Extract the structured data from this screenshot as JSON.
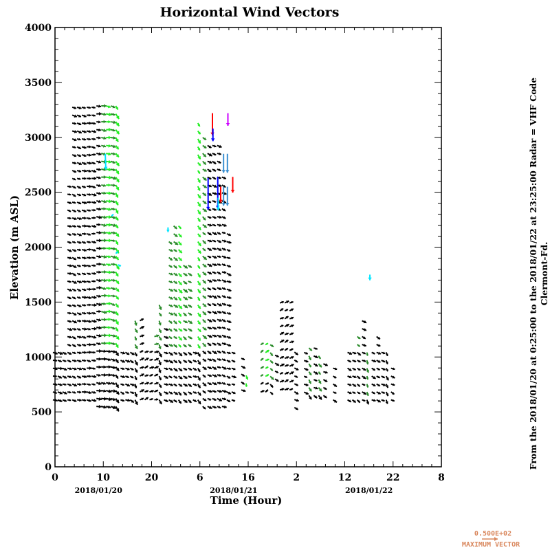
{
  "chart_data": {
    "type": "vector-field",
    "title": "Horizontal Wind Vectors",
    "xlabel": "Time (Hour)",
    "ylabel": "Elevation (m ASL)",
    "xlim": [
      0,
      80
    ],
    "ylim": [
      0,
      4000
    ],
    "x_ticks": [
      0,
      10,
      20,
      30,
      40,
      50,
      60,
      70,
      80
    ],
    "x_tick_labels": [
      "0",
      "10",
      "20",
      "6",
      "16",
      "2",
      "12",
      "22",
      "8"
    ],
    "y_ticks": [
      0,
      500,
      1000,
      1500,
      2000,
      2500,
      3000,
      3500,
      4000
    ],
    "y_tick_labels": [
      "0",
      "500",
      "1000",
      "1500",
      "2000",
      "2500",
      "3000",
      "3500",
      "4000"
    ],
    "date_labels": [
      {
        "t": 9,
        "text": "2018/01/20"
      },
      {
        "t": 37,
        "text": "2018/01/21"
      },
      {
        "t": 65,
        "text": "2018/01/22"
      }
    ],
    "side_text": [
      "From the 2018/01/20 at  0:25:00 to the 2018/01/22 at 23:25:00 Radar = VHF Code",
      "Clermont-Fd."
    ],
    "legend": {
      "value": "0.500E+02",
      "label": "MAXIMUM VECTOR",
      "color": "#d9885e",
      "speed": 50
    },
    "row_step_m": 72,
    "colors": {
      "black": "#000000",
      "dark": "#2a8a2a",
      "bright": "#22ee22",
      "cyan": "#00e5ff",
      "steel": "#3a8fd0",
      "red": "#ff0000",
      "blue": "#0000ff",
      "purple": "#cc00ff"
    },
    "columns": [
      {
        "t": 0,
        "z": [
          610,
          1050
        ],
        "u": 14,
        "v": -3,
        "c": "black"
      },
      {
        "t": 1,
        "z": [
          610,
          1050
        ],
        "u": 14,
        "v": -4,
        "c": "black"
      },
      {
        "t": 2,
        "z": [
          610,
          1050
        ],
        "u": 13,
        "v": -5,
        "c": "black"
      },
      {
        "t": 3,
        "z": [
          610,
          2620
        ],
        "u": 13,
        "v": -4,
        "c": "black"
      },
      {
        "t": 4,
        "z": [
          610,
          3290
        ],
        "u": 13,
        "v": -5,
        "c": "black"
      },
      {
        "t": 5,
        "z": [
          610,
          3290
        ],
        "u": 13,
        "v": -4,
        "c": "black"
      },
      {
        "t": 6,
        "z": [
          610,
          3290
        ],
        "u": 14,
        "v": -3,
        "c": "black"
      },
      {
        "t": 7,
        "z": [
          610,
          3290
        ],
        "u": 14,
        "v": -2,
        "c": "black"
      },
      {
        "t": 8,
        "z": [
          610,
          3290
        ],
        "u": 14,
        "v": -2,
        "c": "black"
      },
      {
        "t": 9,
        "z": [
          550,
          3290
        ],
        "u": 15,
        "v": -2,
        "c": "black"
      },
      {
        "t": 10,
        "z": [
          550,
          3290
        ],
        "u": 16,
        "v": -2,
        "c": "dark",
        "split": 1100
      },
      {
        "t": 11,
        "z": [
          550,
          3290
        ],
        "u": 16,
        "v": -2,
        "c": "bright",
        "split": 1100
      },
      {
        "t": 12,
        "z": [
          550,
          3290
        ],
        "u": 15,
        "v": -4,
        "c": "dark",
        "split": 1100
      },
      {
        "t": 13,
        "z": [
          550,
          3290
        ],
        "u": 9,
        "v": -14,
        "c": "bright",
        "split": 1100
      },
      {
        "t": 14,
        "z": [
          610,
          1050
        ],
        "u": 13,
        "v": -5,
        "c": "black"
      },
      {
        "t": 15,
        "z": [
          610,
          1050
        ],
        "u": 13,
        "v": -5,
        "c": "black"
      },
      {
        "t": 16,
        "z": [
          610,
          1050
        ],
        "u": 12,
        "v": -6,
        "c": "black"
      },
      {
        "t": 17,
        "z": [
          610,
          1400
        ],
        "u": 6,
        "v": -14,
        "c": "dark",
        "split": 1100
      },
      {
        "t": 18,
        "z": [
          610,
          1350
        ],
        "u": 12,
        "v": 6,
        "c": "black"
      },
      {
        "t": 19,
        "z": [
          610,
          1100
        ],
        "u": 12,
        "v": 6,
        "c": "black"
      },
      {
        "t": 20,
        "z": [
          610,
          1050
        ],
        "u": 12,
        "v": 5,
        "c": "black"
      },
      {
        "t": 21,
        "z": [
          610,
          1200
        ],
        "u": 13,
        "v": 4,
        "c": "dark",
        "split": 1100
      },
      {
        "t": 22,
        "z": [
          610,
          1480
        ],
        "u": 6,
        "v": -13,
        "c": "dark",
        "split": 1100
      },
      {
        "t": 23,
        "z": [
          610,
          1300
        ],
        "u": 13,
        "v": -5,
        "c": "black"
      },
      {
        "t": 24,
        "z": [
          610,
          2100
        ],
        "u": 12,
        "v": -7,
        "c": "dark",
        "split": 1100
      },
      {
        "t": 25,
        "z": [
          610,
          2200
        ],
        "u": 12,
        "v": -8,
        "c": "dark",
        "split": 1100
      },
      {
        "t": 26,
        "z": [
          610,
          2200
        ],
        "u": 10,
        "v": -10,
        "c": "bright",
        "split": 1100
      },
      {
        "t": 27,
        "z": [
          610,
          1900
        ],
        "u": 12,
        "v": -8,
        "c": "dark",
        "split": 1100
      },
      {
        "t": 28,
        "z": [
          610,
          1900
        ],
        "u": 12,
        "v": -7,
        "c": "dark",
        "split": 1100
      },
      {
        "t": 29,
        "z": [
          610,
          1050
        ],
        "u": 13,
        "v": -5,
        "c": "black"
      },
      {
        "t": 30,
        "z": [
          610,
          3200
        ],
        "u": 8,
        "v": -12,
        "c": "bright",
        "split": 1100
      },
      {
        "t": 31,
        "z": [
          550,
          3000
        ],
        "u": 11,
        "v": -9,
        "c": "dark",
        "split": 1100
      },
      {
        "t": 32,
        "z": [
          550,
          2950
        ],
        "u": 13,
        "v": -6,
        "c": "black"
      },
      {
        "t": 33,
        "z": [
          550,
          2950
        ],
        "u": 13,
        "v": -6,
        "c": "black"
      },
      {
        "t": 34,
        "z": [
          550,
          2950
        ],
        "u": 13,
        "v": -5,
        "c": "black"
      },
      {
        "t": 35,
        "z": [
          550,
          2700
        ],
        "u": 13,
        "v": -5,
        "c": "black"
      },
      {
        "t": 36,
        "z": [
          610,
          2150
        ],
        "u": 13,
        "v": -5,
        "c": "black"
      },
      {
        "t": 37,
        "z": [
          610,
          1050
        ],
        "u": 13,
        "v": -4,
        "c": "black"
      },
      {
        "t": 39,
        "z": [
          700,
          1050
        ],
        "u": 12,
        "v": -5,
        "c": "black"
      },
      {
        "t": 40,
        "z": [
          760,
          900
        ],
        "u": 3,
        "v": -12,
        "c": "bright"
      },
      {
        "t": 43,
        "z": [
          680,
          1150
        ],
        "u": 10,
        "v": 6,
        "c": "dark",
        "split": 800
      },
      {
        "t": 44,
        "z": [
          680,
          1150
        ],
        "u": 10,
        "v": 6,
        "c": "bright",
        "split": 800
      },
      {
        "t": 45,
        "z": [
          680,
          1150
        ],
        "u": 9,
        "v": -8,
        "c": "dark",
        "split": 800
      },
      {
        "t": 46,
        "z": [
          800,
          1050
        ],
        "u": 12,
        "v": -6,
        "c": "black"
      },
      {
        "t": 47,
        "z": [
          700,
          1550
        ],
        "u": 12,
        "v": 6,
        "c": "black"
      },
      {
        "t": 48,
        "z": [
          700,
          1550
        ],
        "u": 12,
        "v": 6,
        "c": "black"
      },
      {
        "t": 49,
        "z": [
          700,
          1550
        ],
        "u": 12,
        "v": 5,
        "c": "black"
      },
      {
        "t": 50,
        "z": [
          540,
          1050
        ],
        "u": 12,
        "v": -6,
        "c": "black"
      },
      {
        "t": 52,
        "z": [
          680,
          1050
        ],
        "u": 12,
        "v": -6,
        "c": "black"
      },
      {
        "t": 53,
        "z": [
          650,
          1100
        ],
        "u": 8,
        "v": -11,
        "c": "dark",
        "split": 700
      },
      {
        "t": 54,
        "z": [
          650,
          1100
        ],
        "u": 12,
        "v": -6,
        "c": "black"
      },
      {
        "t": 55,
        "z": [
          650,
          1050
        ],
        "u": 8,
        "v": -11,
        "c": "dark",
        "split": 700
      },
      {
        "t": 56,
        "z": [
          650,
          1000
        ],
        "u": 12,
        "v": -6,
        "c": "black"
      },
      {
        "t": 58,
        "z": [
          610,
          900
        ],
        "u": 12,
        "v": -6,
        "c": "black"
      },
      {
        "t": 61,
        "z": [
          610,
          1050
        ],
        "u": 12,
        "v": -6,
        "c": "black"
      },
      {
        "t": 62,
        "z": [
          610,
          1050
        ],
        "u": 12,
        "v": -6,
        "c": "black"
      },
      {
        "t": 63,
        "z": [
          610,
          1200
        ],
        "u": 10,
        "v": -8,
        "c": "dark",
        "split": 1100
      },
      {
        "t": 64,
        "z": [
          610,
          1350
        ],
        "u": 12,
        "v": -6,
        "c": "black"
      },
      {
        "t": 65,
        "z": [
          610,
          1050
        ],
        "u": 4,
        "v": -13,
        "c": "dark",
        "split": 650
      },
      {
        "t": 66,
        "z": [
          610,
          1050
        ],
        "u": 12,
        "v": -6,
        "c": "black"
      },
      {
        "t": 67,
        "z": [
          610,
          1250
        ],
        "u": 12,
        "v": -6,
        "c": "black"
      },
      {
        "t": 68,
        "z": [
          610,
          1050
        ],
        "u": 12,
        "v": -6,
        "c": "black"
      },
      {
        "t": 69,
        "z": [
          610,
          1100
        ],
        "u": 6,
        "v": -12,
        "c": "dark",
        "split": 1050
      },
      {
        "t": 70,
        "z": [
          610,
          900
        ],
        "u": 12,
        "v": -6,
        "c": "black"
      }
    ],
    "special_vectors": [
      {
        "t": 32.6,
        "z": 3220,
        "u": 0,
        "v": -70,
        "c": "red"
      },
      {
        "t": 32.7,
        "z": 3080,
        "u": 0,
        "v": -40,
        "c": "blue"
      },
      {
        "t": 35.8,
        "z": 3220,
        "u": 0,
        "v": -40,
        "c": "purple"
      },
      {
        "t": 31.7,
        "z": 2630,
        "u": 0,
        "v": -100,
        "c": "blue"
      },
      {
        "t": 33.7,
        "z": 2640,
        "u": 0,
        "v": -100,
        "c": "blue"
      },
      {
        "t": 34.9,
        "z": 2850,
        "u": 0,
        "v": -60,
        "c": "steel"
      },
      {
        "t": 35.7,
        "z": 2850,
        "u": 0,
        "v": -60,
        "c": "steel"
      },
      {
        "t": 34.9,
        "z": 2550,
        "u": 0,
        "v": -60,
        "c": "steel"
      },
      {
        "t": 35.7,
        "z": 2550,
        "u": 0,
        "v": -60,
        "c": "steel"
      },
      {
        "t": 36.8,
        "z": 2640,
        "u": 0,
        "v": -50,
        "c": "red"
      },
      {
        "t": 34.3,
        "z": 2550,
        "u": 0,
        "v": -50,
        "c": "red"
      },
      {
        "t": 33.8,
        "z": 2450,
        "u": 0,
        "v": -40,
        "c": "cyan"
      },
      {
        "t": 10.4,
        "z": 2850,
        "u": 2,
        "v": -50,
        "c": "cyan"
      },
      {
        "t": 12.1,
        "z": 2300,
        "u": -6,
        "v": -6,
        "c": "cyan"
      },
      {
        "t": 13.1,
        "z": 1960,
        "u": -8,
        "v": -6,
        "c": "cyan"
      },
      {
        "t": 13.0,
        "z": 1840,
        "u": 10,
        "v": -4,
        "c": "cyan"
      },
      {
        "t": 23.4,
        "z": 2180,
        "u": 0,
        "v": -15,
        "c": "cyan"
      },
      {
        "t": 65.2,
        "z": 1750,
        "u": 0,
        "v": -18,
        "c": "cyan"
      }
    ]
  }
}
